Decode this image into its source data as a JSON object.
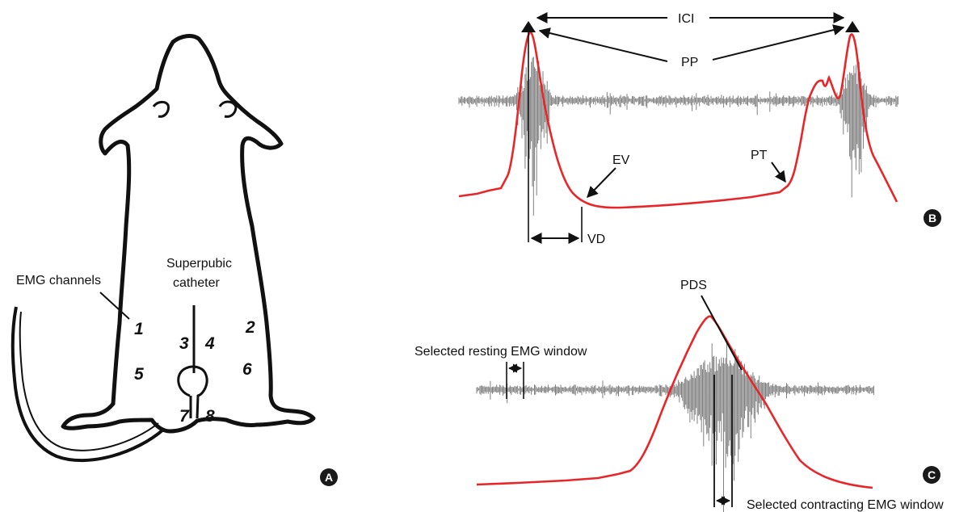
{
  "panel_a": {
    "label_emg": "EMG channels",
    "label_catheter_1": "Superpubic",
    "label_catheter_2": "catheter",
    "channels": [
      "1",
      "2",
      "3",
      "4",
      "5",
      "6",
      "7",
      "8"
    ],
    "badge": "A"
  },
  "panel_b": {
    "label_ici": "ICI",
    "label_pp": "PP",
    "label_ev": "EV",
    "label_pt": "PT",
    "label_vd": "VD",
    "badge": "B"
  },
  "panel_c": {
    "label_pds": "PDS",
    "label_resting": "Selected resting EMG window",
    "label_contracting": "Selected contracting EMG window",
    "badge": "C"
  },
  "colors": {
    "pressure_trace": "#e8262a",
    "emg_trace": "#808080",
    "outline": "#111111",
    "badge": "#1a1a1a"
  }
}
